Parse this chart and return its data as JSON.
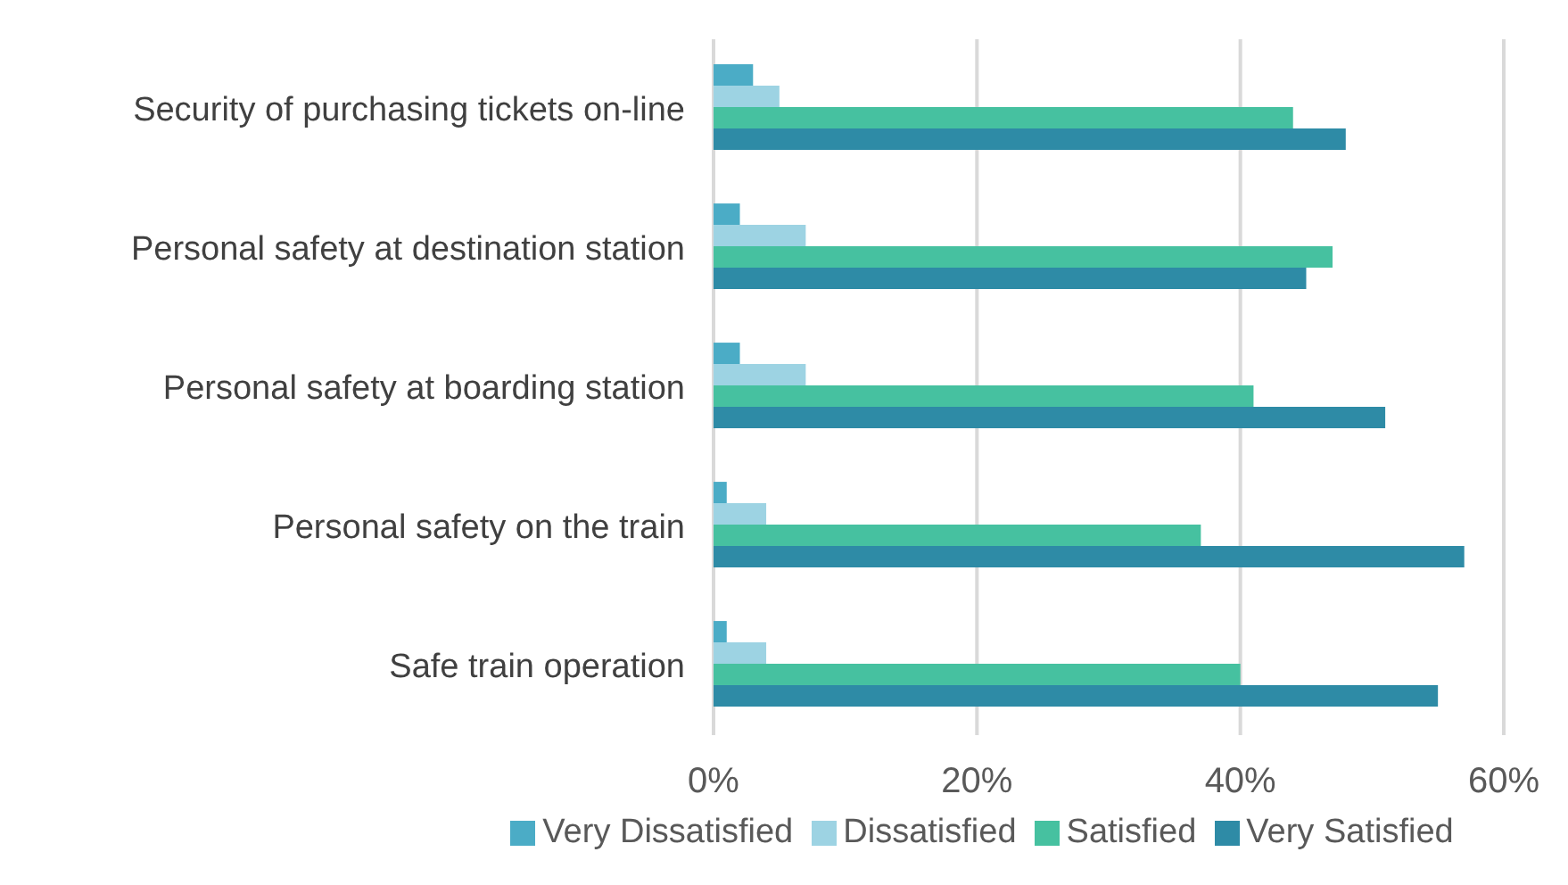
{
  "chart_data": {
    "type": "bar",
    "orientation": "horizontal",
    "categories": [
      "Security of purchasing tickets on-line",
      "Personal safety at destination station",
      "Personal safety at boarding station",
      "Personal safety on the train",
      "Safe train operation"
    ],
    "series": [
      {
        "name": "Very Dissatisfied",
        "color": "#4bacc6",
        "values": [
          3,
          2,
          2,
          1,
          1
        ]
      },
      {
        "name": "Dissatisfied",
        "color": "#9dd3e3",
        "values": [
          5,
          7,
          7,
          4,
          4
        ]
      },
      {
        "name": "Satisfied",
        "color": "#46c1a0",
        "values": [
          44,
          47,
          41,
          37,
          40
        ]
      },
      {
        "name": "Very Satisfied",
        "color": "#2e8ba6",
        "values": [
          48,
          45,
          51,
          57,
          55
        ]
      }
    ],
    "xlim": [
      0,
      60
    ],
    "xticks": [
      {
        "value": 0,
        "label": "0%"
      },
      {
        "value": 20,
        "label": "20%"
      },
      {
        "value": 40,
        "label": "40%"
      },
      {
        "value": 60,
        "label": "60%"
      }
    ],
    "grid": "x",
    "legend": "bottom"
  }
}
